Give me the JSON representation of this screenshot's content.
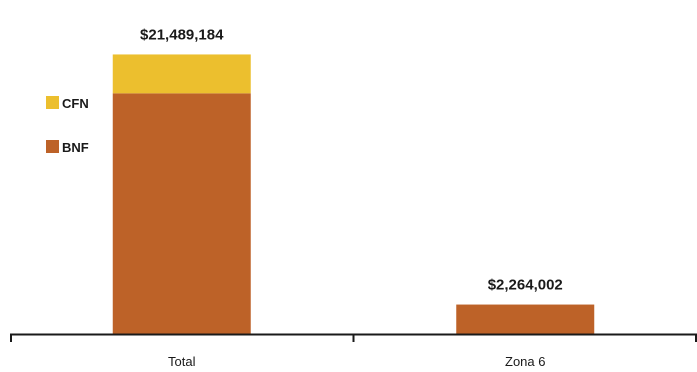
{
  "colors": {
    "BNF": "#BD6228",
    "CFN": "#ECBF2E",
    "axis": "#1a1a1a"
  },
  "chart_data": {
    "type": "bar",
    "stacked": true,
    "categories": [
      "Total",
      "Zona 6"
    ],
    "series": [
      {
        "name": "BNF",
        "values": [
          18500000,
          2264002
        ]
      },
      {
        "name": "CFN",
        "values": [
          2989184,
          0
        ]
      }
    ],
    "totals": [
      21489184,
      2264002
    ],
    "total_labels": [
      "$21,489,184",
      "$2,264,002"
    ],
    "legend": [
      "CFN",
      "BNF"
    ],
    "legend_position": "left",
    "ylim": [
      0,
      22600000
    ],
    "grid": false,
    "y_axis_visible": false,
    "title": "",
    "xlabel": "",
    "ylabel": ""
  }
}
